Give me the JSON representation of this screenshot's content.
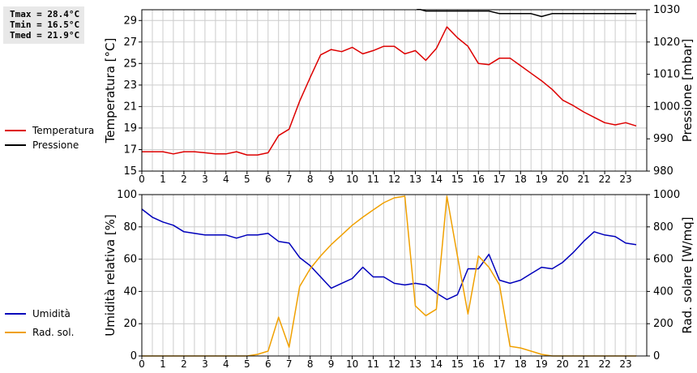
{
  "stats": [
    "Tmax = 28.4°C",
    "Tmin = 16.5°C",
    "Tmed = 21.9°C"
  ],
  "colors": {
    "temperatura": "#dd0000",
    "pressione": "#000000",
    "umidita": "#0000bb",
    "rad_sol": "#f0a000",
    "grid": "#cccccc"
  },
  "legend": {
    "top": [
      {
        "label": "Temperatura",
        "color": "#dd0000"
      },
      {
        "label": "Pressione",
        "color": "#000000"
      }
    ],
    "bottom": [
      {
        "label": "Umidità",
        "color": "#0000bb"
      },
      {
        "label": "Rad. sol.",
        "color": "#f0a000"
      }
    ]
  },
  "chart_data": [
    {
      "type": "line",
      "grid": true,
      "x_ticks": [
        "0",
        "1",
        "2",
        "3",
        "4",
        "5",
        "6",
        "7",
        "8",
        "9",
        "10",
        "11",
        "12",
        "13",
        "14",
        "15",
        "16",
        "17",
        "18",
        "19",
        "20",
        "21",
        "22",
        "23"
      ],
      "xlim": [
        0,
        24
      ],
      "ylabel": "Temperatura [°C]",
      "ylabel_right": "Pressione [mbar]",
      "ylim": [
        15,
        30
      ],
      "ylim_right": [
        980,
        1030
      ],
      "y_ticks": [
        "15",
        "17",
        "19",
        "21",
        "23",
        "25",
        "27",
        "29"
      ],
      "y_ticks_right": [
        "980",
        "990",
        "1000",
        "1010",
        "1020",
        "1030"
      ],
      "series": [
        {
          "name": "Temperatura",
          "axis": "left",
          "color": "#dd0000",
          "x": [
            0,
            0.5,
            1,
            1.5,
            2,
            2.5,
            3,
            3.5,
            4,
            4.5,
            5,
            5.5,
            6,
            6.5,
            7,
            7.5,
            8,
            8.5,
            9,
            9.5,
            10,
            10.5,
            11,
            11.5,
            12,
            12.5,
            13,
            13.5,
            14,
            14.5,
            15,
            15.5,
            16,
            16.5,
            17,
            17.5,
            18,
            18.5,
            19,
            19.5,
            20,
            20.5,
            21,
            21.5,
            22,
            22.5,
            23,
            23.5
          ],
          "y": [
            16.8,
            16.8,
            16.8,
            16.6,
            16.8,
            16.8,
            16.7,
            16.6,
            16.6,
            16.8,
            16.5,
            16.5,
            16.7,
            18.3,
            18.9,
            21.5,
            23.7,
            25.8,
            26.3,
            26.1,
            26.5,
            25.9,
            26.2,
            26.6,
            26.6,
            25.9,
            26.2,
            25.3,
            26.4,
            28.4,
            27.4,
            26.6,
            25.0,
            24.9,
            25.5,
            25.5,
            24.8,
            24.1,
            23.4,
            22.6,
            21.6,
            21.1,
            20.5,
            20.0,
            19.5,
            19.3,
            19.5,
            19.2
          ]
        },
        {
          "name": "Pressione",
          "axis": "right",
          "color": "#000000",
          "x": [
            13,
            13.5,
            14,
            14.5,
            15,
            15.5,
            16,
            16.5,
            17,
            17.5,
            18,
            18.5,
            19,
            19.5,
            20,
            20.5,
            21,
            21.5,
            22,
            22.5,
            23,
            23.5
          ],
          "y": [
            1030.5,
            1029.6,
            1029.6,
            1029.6,
            1029.6,
            1029.6,
            1029.6,
            1029.6,
            1028.8,
            1028.8,
            1028.8,
            1028.8,
            1027.9,
            1028.8,
            1028.8,
            1028.8,
            1028.8,
            1028.8,
            1028.8,
            1028.8,
            1028.8,
            1028.8
          ]
        }
      ]
    },
    {
      "type": "line",
      "grid": true,
      "x_ticks": [
        "0",
        "1",
        "2",
        "3",
        "4",
        "5",
        "6",
        "7",
        "8",
        "9",
        "10",
        "11",
        "12",
        "13",
        "14",
        "15",
        "16",
        "17",
        "18",
        "19",
        "20",
        "21",
        "22",
        "23"
      ],
      "xlim": [
        0,
        24
      ],
      "ylabel": "Umidità relativa [%]",
      "ylabel_right": "Rad. solare [W/mq]",
      "ylim": [
        0,
        100
      ],
      "ylim_right": [
        0,
        1000
      ],
      "y_ticks": [
        "0",
        "20",
        "40",
        "60",
        "80",
        "100"
      ],
      "y_ticks_right": [
        "0",
        "200",
        "400",
        "600",
        "800",
        "1000"
      ],
      "series": [
        {
          "name": "Umidità",
          "axis": "left",
          "color": "#0000bb",
          "x": [
            0,
            0.5,
            1,
            1.5,
            2,
            2.5,
            3,
            3.5,
            4,
            4.5,
            5,
            5.5,
            6,
            6.5,
            7,
            7.5,
            8,
            8.5,
            9,
            9.5,
            10,
            10.5,
            11,
            11.5,
            12,
            12.5,
            13,
            13.5,
            14,
            14.5,
            15,
            15.5,
            16,
            16.5,
            17,
            17.5,
            18,
            18.5,
            19,
            19.5,
            20,
            20.5,
            21,
            21.5,
            22,
            22.5,
            23,
            23.5
          ],
          "y": [
            91,
            86,
            83,
            81,
            77,
            76,
            75,
            75,
            75,
            73,
            75,
            75,
            76,
            71,
            70,
            61,
            56,
            49,
            42,
            45,
            48,
            55,
            49,
            49,
            45,
            44,
            45,
            44,
            39,
            35,
            38,
            54,
            54,
            63,
            47,
            45,
            47,
            51,
            55,
            54,
            58,
            64,
            71,
            77,
            75,
            74,
            70,
            69
          ]
        },
        {
          "name": "Rad. sol.",
          "axis": "right",
          "color": "#f0a000",
          "x": [
            0,
            1,
            2,
            3,
            4,
            5,
            5.5,
            6,
            6.5,
            7,
            7.5,
            8,
            8.5,
            9,
            9.5,
            10,
            10.5,
            11,
            11.5,
            12,
            12.5,
            13,
            13.5,
            14,
            14.5,
            15,
            15.5,
            16,
            16.5,
            17,
            17.5,
            18,
            18.5,
            19,
            19.5,
            20,
            21,
            22,
            23,
            23.5
          ],
          "y": [
            0,
            0,
            0,
            0,
            0,
            0,
            10,
            30,
            240,
            55,
            430,
            540,
            620,
            690,
            750,
            810,
            860,
            905,
            950,
            980,
            990,
            310,
            250,
            290,
            990,
            620,
            260,
            620,
            550,
            440,
            60,
            50,
            30,
            10,
            0,
            0,
            0,
            0,
            0,
            0
          ]
        }
      ]
    }
  ]
}
